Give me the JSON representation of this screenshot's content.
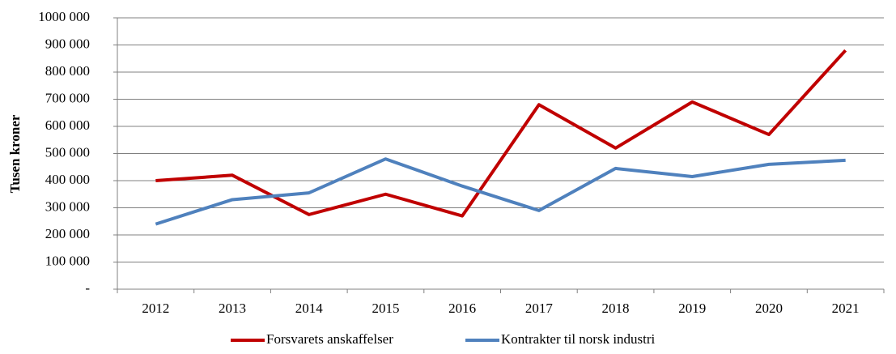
{
  "chart_data": {
    "type": "line",
    "y_label": "Tusen kroner",
    "categories": [
      "2012",
      "2013",
      "2014",
      "2015",
      "2016",
      "2017",
      "2018",
      "2019",
      "2020",
      "2021"
    ],
    "series": [
      {
        "name": "Forsvarets anskaffelser",
        "color": "#c00000",
        "values": [
          400000,
          420000,
          275000,
          350000,
          270000,
          680000,
          520000,
          690000,
          570000,
          880000
        ]
      },
      {
        "name": "Kontrakter til norsk industri",
        "color": "#4f81bd",
        "values": [
          240000,
          330000,
          355000,
          480000,
          380000,
          290000,
          445000,
          415000,
          460000,
          475000
        ]
      }
    ],
    "ylim": [
      0,
      1000000
    ],
    "yticks": [
      {
        "value": 0,
        "label": "-"
      },
      {
        "value": 100000,
        "label": "100 000"
      },
      {
        "value": 200000,
        "label": "200 000"
      },
      {
        "value": 300000,
        "label": "300 000"
      },
      {
        "value": 400000,
        "label": "400 000"
      },
      {
        "value": 500000,
        "label": "500 000"
      },
      {
        "value": 600000,
        "label": "600 000"
      },
      {
        "value": 700000,
        "label": "700 000"
      },
      {
        "value": 800000,
        "label": "800 000"
      },
      {
        "value": 900000,
        "label": "900 000"
      },
      {
        "value": 1000000,
        "label": "1000 000"
      }
    ],
    "grid": true,
    "legend": "bottom"
  }
}
